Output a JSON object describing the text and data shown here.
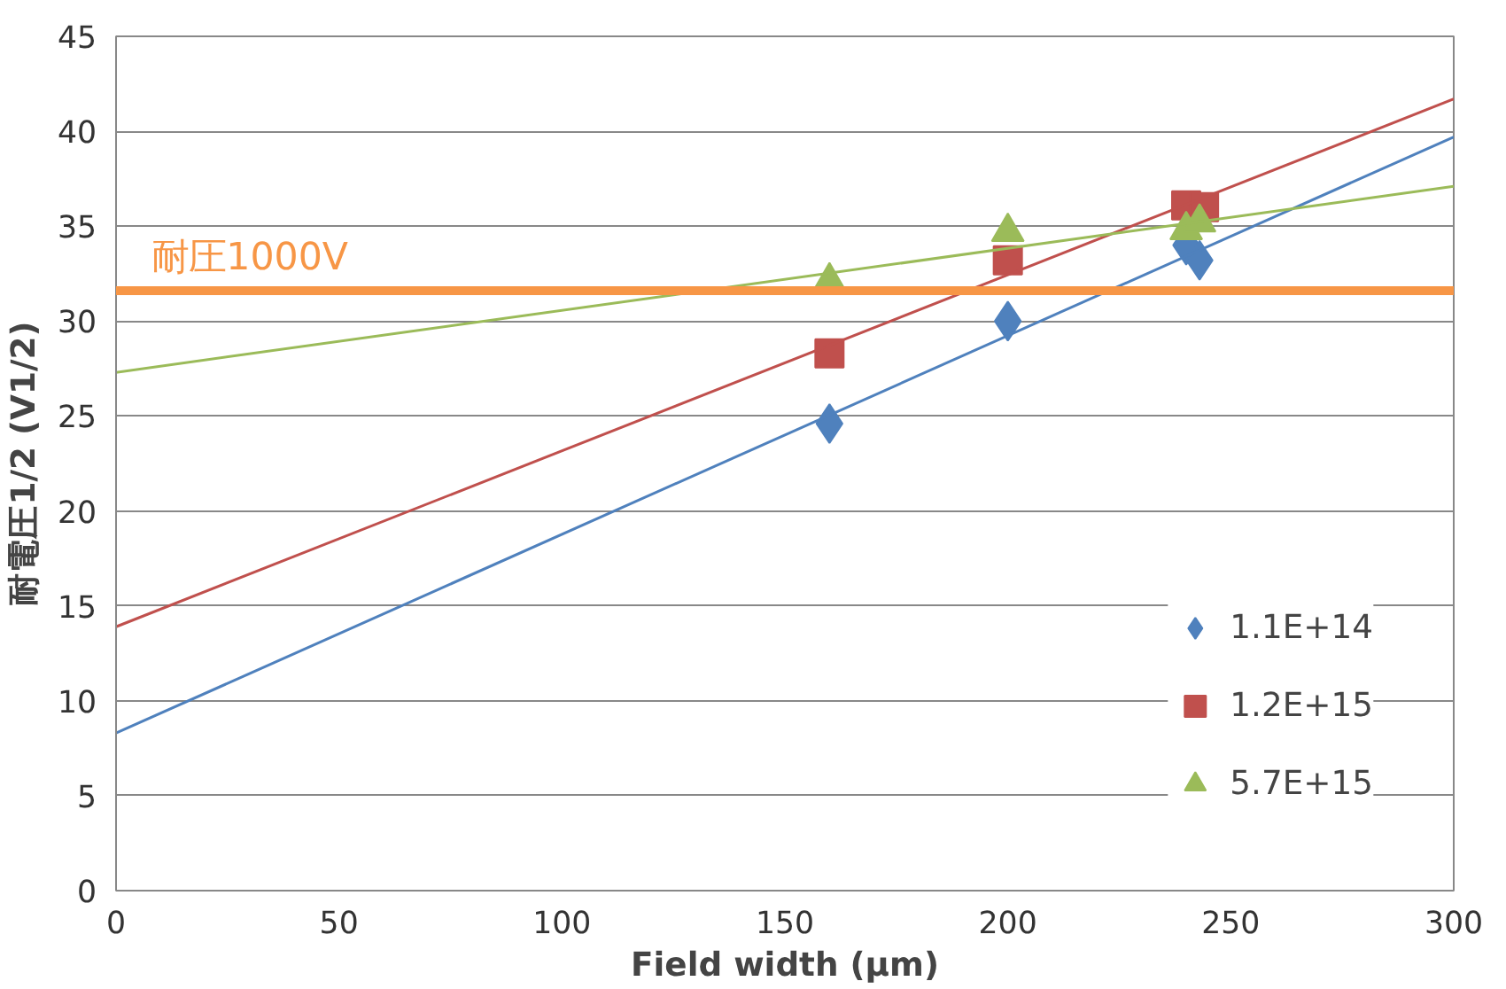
{
  "chart_data": {
    "type": "scatter",
    "xlabel": "Field width (µm)",
    "ylabel": "耐電圧1/2 (V1/2)",
    "xlim": [
      0,
      300
    ],
    "xticks": [
      0,
      50,
      100,
      150,
      200,
      250,
      300
    ],
    "ylim": [
      0,
      45
    ],
    "yticks": [
      0,
      5,
      10,
      15,
      20,
      25,
      30,
      35,
      40,
      45
    ],
    "grid": "y",
    "legend": "bottom right",
    "series": [
      {
        "name": "1.1E+14",
        "marker": "diamond",
        "color": "#4f81bd",
        "x": [
          160,
          200,
          240,
          243
        ],
        "values": [
          24.6,
          30.0,
          34.0,
          33.2
        ]
      },
      {
        "name": "1.2E+15",
        "marker": "square",
        "color": "#c0504d",
        "x": [
          160,
          200,
          240,
          244
        ],
        "values": [
          28.3,
          33.2,
          36.1,
          36.0
        ]
      },
      {
        "name": "5.7E+15",
        "marker": "triangle",
        "color": "#9bbb59",
        "x": [
          160,
          200,
          240,
          243
        ],
        "values": [
          32.1,
          34.7,
          34.8,
          35.2
        ]
      },
      {
        "type": "line",
        "color": "#4f81bd",
        "x": [
          0,
          300
        ],
        "values": [
          8.3,
          39.7
        ]
      },
      {
        "type": "line",
        "color": "#c0504d",
        "x": [
          0,
          300
        ],
        "values": [
          13.9,
          41.7
        ]
      },
      {
        "type": "line",
        "color": "#9bbb59",
        "x": [
          0,
          300
        ],
        "values": [
          27.3,
          37.1
        ]
      }
    ],
    "ref_lines": [
      {
        "axis": "y",
        "value": 31.6,
        "label": "耐圧1000V",
        "color": "#f79646"
      }
    ]
  }
}
